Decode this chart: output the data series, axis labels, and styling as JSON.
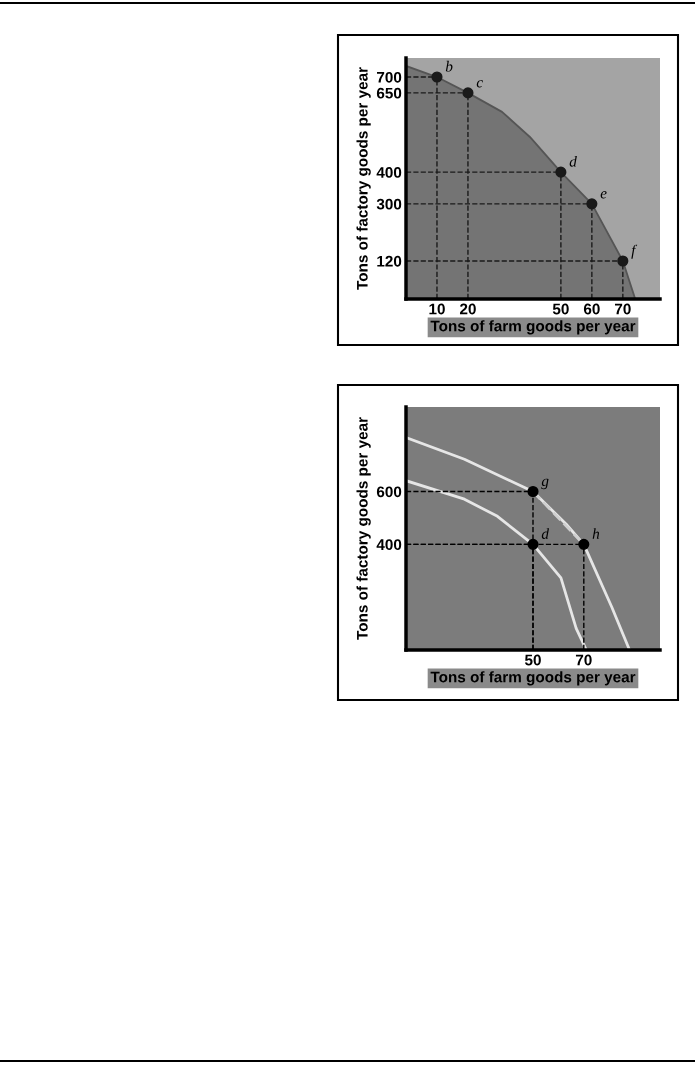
{
  "chart_data": [
    {
      "type": "area",
      "xlabel": "Tons of farm goods per year",
      "ylabel": "Tons of factory goods per year",
      "xlim": [
        0,
        82
      ],
      "ylim": [
        0,
        760
      ],
      "xticks": [
        10,
        20,
        50,
        60,
        70
      ],
      "yticks": [
        120,
        300,
        400,
        650,
        700
      ],
      "grid": true,
      "series": [
        {
          "color": "#747474",
          "x": [
            0,
            10,
            20,
            31,
            40,
            50,
            60,
            70,
            74
          ],
          "values": [
            735,
            700,
            650,
            590,
            511,
            400,
            300,
            120,
            0
          ]
        },
        {
          "type": "scatter",
          "marker": "circle",
          "color": "#1a1a1a",
          "line_style": "dashed",
          "x": [
            10,
            20,
            50,
            60,
            70
          ],
          "values": [
            700,
            650,
            400,
            300,
            120
          ]
        }
      ],
      "annotations": [
        {
          "text": "b",
          "x": 10,
          "y": 700
        },
        {
          "text": "c",
          "x": 20,
          "y": 650
        },
        {
          "text": "d",
          "x": 50,
          "y": 400
        },
        {
          "text": "e",
          "x": 60,
          "y": 300
        },
        {
          "text": "f",
          "x": 70,
          "y": 120
        }
      ]
    },
    {
      "type": "line",
      "xlabel": "Tons of farm goods per year",
      "ylabel": "Tons of factory goods per year",
      "xlim": [
        0,
        100
      ],
      "ylim": [
        0,
        920
      ],
      "xticks": [
        50,
        70
      ],
      "yticks": [
        400,
        600
      ],
      "grid": true,
      "series": [
        {
          "color": "#e6e6e6",
          "line_style": "solid",
          "x": [
            0,
            23,
            36,
            50,
            61,
            67,
            71
          ],
          "values": [
            641,
            571,
            506,
            400,
            273,
            82,
            0
          ]
        },
        {
          "color": "#e6e6e6",
          "line_style": "solid",
          "x": [
            0,
            23,
            50,
            63,
            70,
            81,
            88
          ],
          "values": [
            804,
            722,
            600,
            477,
            400,
            163,
            0
          ]
        },
        {
          "color": "#d0d0d0",
          "line_style": "dashed",
          "x": [
            50,
            70
          ],
          "values": [
            600,
            400
          ]
        },
        {
          "type": "scatter",
          "marker": "circle",
          "color": "#000000",
          "line_style": "dashed",
          "x": [
            50,
            50,
            70
          ],
          "values": [
            600,
            400,
            400
          ]
        }
      ],
      "annotations": [
        {
          "text": "g",
          "x": 50,
          "y": 600
        },
        {
          "text": "d",
          "x": 50,
          "y": 400
        },
        {
          "text": "h",
          "x": 70,
          "y": 400
        }
      ]
    }
  ]
}
